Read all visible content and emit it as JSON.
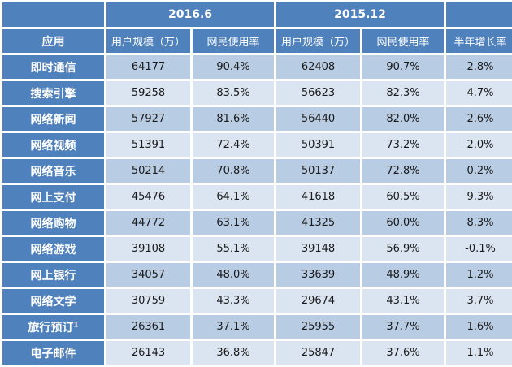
{
  "header": {
    "period_a": "2016.6",
    "period_b": "2015.12",
    "col_app": "应用",
    "col_users_a": "用户规模（万）",
    "col_rate_a": "网民使用率",
    "col_users_b": "用户规模（万）",
    "col_rate_b": "网民使用率",
    "col_growth": "半年增长率"
  },
  "rows": [
    {
      "app": "即时通信",
      "users_a": "64177",
      "rate_a": "90.4%",
      "users_b": "62408",
      "rate_b": "90.7%",
      "growth": "2.8%"
    },
    {
      "app": "搜索引擎",
      "users_a": "59258",
      "rate_a": "83.5%",
      "users_b": "56623",
      "rate_b": "82.3%",
      "growth": "4.7%"
    },
    {
      "app": "网络新闻",
      "users_a": "57927",
      "rate_a": "81.6%",
      "users_b": "56440",
      "rate_b": "82.0%",
      "growth": "2.6%"
    },
    {
      "app": "网络视频",
      "users_a": "51391",
      "rate_a": "72.4%",
      "users_b": "50391",
      "rate_b": "73.2%",
      "growth": "2.0%"
    },
    {
      "app": "网络音乐",
      "users_a": "50214",
      "rate_a": "70.8%",
      "users_b": "50137",
      "rate_b": "72.8%",
      "growth": "0.2%"
    },
    {
      "app": "网上支付",
      "users_a": "45476",
      "rate_a": "64.1%",
      "users_b": "41618",
      "rate_b": "60.5%",
      "growth": "9.3%"
    },
    {
      "app": "网络购物",
      "users_a": "44772",
      "rate_a": "63.1%",
      "users_b": "41325",
      "rate_b": "60.0%",
      "growth": "8.3%"
    },
    {
      "app": "网络游戏",
      "users_a": "39108",
      "rate_a": "55.1%",
      "users_b": "39148",
      "rate_b": "56.9%",
      "growth": "-0.1%"
    },
    {
      "app": "网上银行",
      "users_a": "34057",
      "rate_a": "48.0%",
      "users_b": "33639",
      "rate_b": "48.9%",
      "growth": "1.2%"
    },
    {
      "app": "网络文学",
      "users_a": "30759",
      "rate_a": "43.3%",
      "users_b": "29674",
      "rate_b": "43.1%",
      "growth": "3.7%"
    },
    {
      "app": "旅行预订",
      "sup": "1",
      "users_a": "26361",
      "rate_a": "37.1%",
      "users_b": "25955",
      "rate_b": "37.7%",
      "growth": "1.6%"
    },
    {
      "app": "电子邮件",
      "users_a": "26143",
      "rate_a": "36.8%",
      "users_b": "25847",
      "rate_b": "37.6%",
      "growth": "1.1%"
    }
  ]
}
